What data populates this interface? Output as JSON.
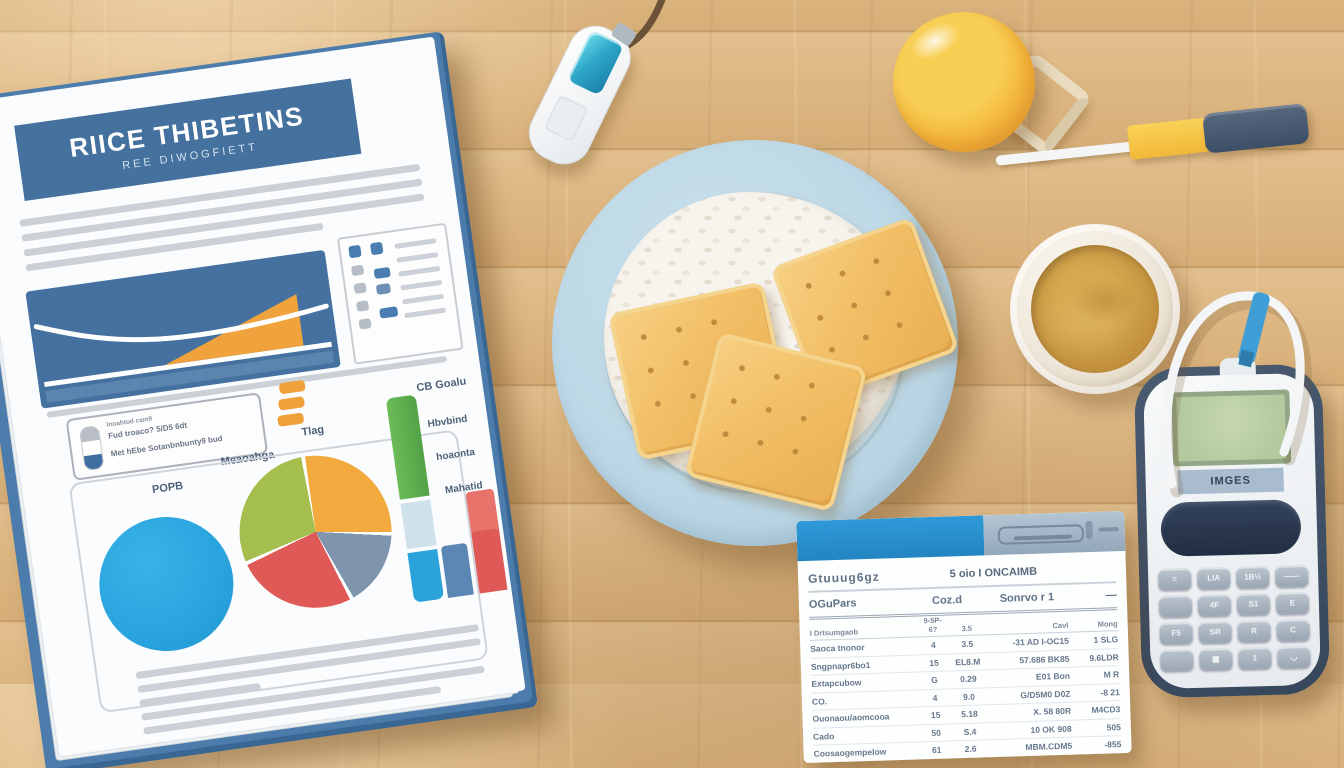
{
  "document": {
    "title": "RIICE THIBETINS",
    "subtitle": "REE DIWOGFIETT",
    "info_box": {
      "top": "Inoahtod cam9",
      "line1": "Fud troaco? 5/D5 6dt",
      "line2": "Met hEbe Sotanbnbunty9 bud"
    },
    "chart_labels": {
      "pie_left": "POPB",
      "pie_mid": "Meaoahga",
      "pie_right": "Tlag",
      "bars_title": "CB Goalu",
      "bars_l1": "Hbvbind",
      "bars_l2": "hoaonta",
      "bars_l3": "Mahatid"
    },
    "pie_slices": [
      {
        "color": "#f2a93d",
        "from": 0,
        "to": 98
      },
      {
        "color": "#7e95ad",
        "from": 101,
        "to": 158
      },
      {
        "color": "#df5a56",
        "from": 161,
        "to": 252
      },
      {
        "color": "#a4bf4e",
        "from": 255,
        "to": 357
      }
    ]
  },
  "meter": {
    "label": "IMGES",
    "keys": [
      "≡",
      "LIA",
      "1B½",
      "——",
      "",
      "4F",
      "S1",
      "E",
      "F5",
      "SR",
      "R",
      "C",
      "",
      "▦",
      "1",
      "◡"
    ]
  },
  "nutrition_card": {
    "title_left": "Gtuuug6gz",
    "title_right": "5 oio I ONCAIMB",
    "sub_cols": [
      "OGuPars",
      "Coz.d",
      "Sonrvo r 1",
      "—"
    ],
    "col_headers": [
      "I Drtsumgaob",
      "9-5P-6?",
      "3.5",
      "Cavl",
      "Mong"
    ],
    "rows": [
      [
        "Saoca tnonor",
        "4",
        "3.5",
        "-31 AD I-OC15",
        "1 SLG"
      ],
      [
        "Sngpnapr6bo1",
        "15",
        "EL8.M",
        "57.686 BK85",
        "9.6LDR"
      ],
      [
        "Extapcubow",
        "G",
        "0.29",
        "E01 Bon",
        "M R"
      ],
      [
        "CO.",
        "4",
        "9.0",
        "G/D5M0 D0Z",
        "-8 21"
      ],
      [
        "Ouonaou/aomcooa",
        "15",
        "5.18",
        "X. 58 80R",
        "M4CD3"
      ],
      [
        "Cado",
        "50",
        "S.4",
        "10 OK 908",
        "505"
      ],
      [
        "Coosaogempelow",
        "61",
        "2.6",
        "MBM.CDM5",
        "-855"
      ]
    ]
  },
  "colors": {
    "accent_blue": "#2f9ad8",
    "document_blue": "#45719e",
    "pie_blue": "#2aa4de",
    "wood": "#dab47f"
  }
}
